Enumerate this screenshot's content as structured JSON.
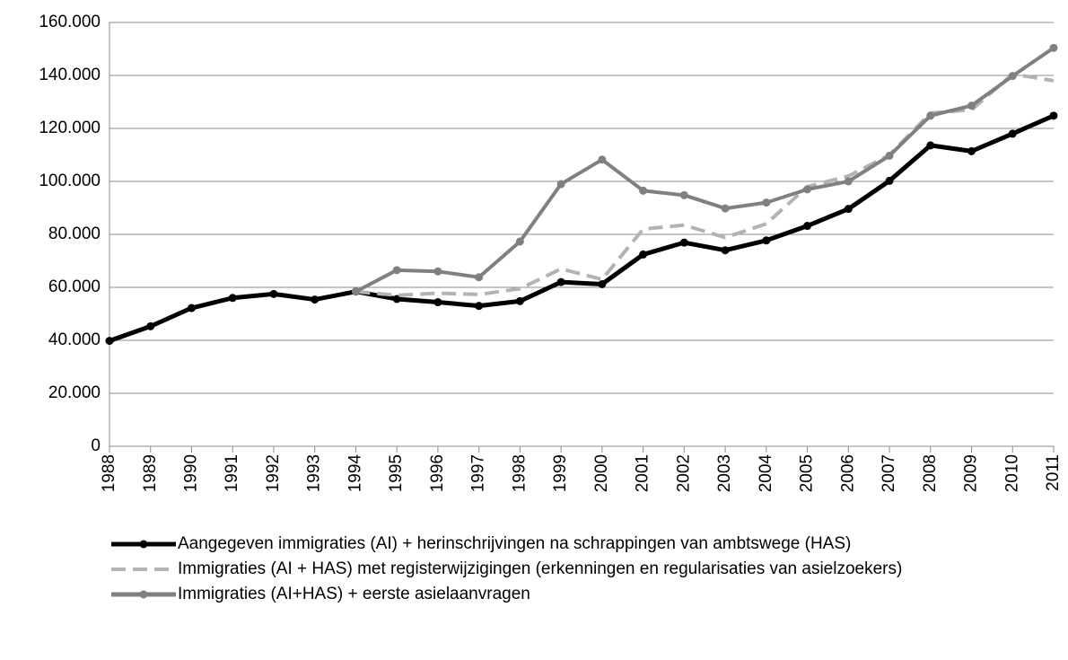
{
  "chart_data": {
    "type": "line",
    "categories": [
      "1988",
      "1989",
      "1990",
      "1991",
      "1992",
      "1993",
      "1994",
      "1995",
      "1996",
      "1997",
      "1998",
      "1999",
      "2000",
      "2001",
      "2002",
      "2003",
      "2004",
      "2005",
      "2006",
      "2007",
      "2008",
      "2009",
      "2010",
      "2011"
    ],
    "series": [
      {
        "name": "Aangegeven immigraties (AI) + herinschrijvingen na schrappingen van ambtswege (HAS)",
        "color": "#000000",
        "dashed": false,
        "marker": true,
        "values": [
          39800,
          45300,
          52200,
          56000,
          57500,
          55400,
          58400,
          55600,
          54400,
          53000,
          54800,
          62000,
          61200,
          72400,
          76900,
          74000,
          77700,
          83200,
          89600,
          100200,
          113600,
          111400,
          118000,
          124800
        ]
      },
      {
        "name": "Immigraties (AI + HAS) met registerwijzigingen (erkenningen en regularisaties van asielzoekers)",
        "color": "#b3b3b3",
        "dashed": true,
        "marker": false,
        "values": [
          null,
          null,
          null,
          null,
          null,
          null,
          58400,
          57000,
          57800,
          57300,
          59500,
          67000,
          63000,
          82000,
          83500,
          78800,
          84000,
          98000,
          102000,
          110000,
          125800,
          127000,
          140500,
          138000
        ]
      },
      {
        "name": "Immigraties (AI+HAS) + eerste asielaanvragen",
        "color": "#808080",
        "dashed": false,
        "marker": true,
        "values": [
          null,
          null,
          null,
          null,
          null,
          null,
          58400,
          66500,
          66000,
          63800,
          77300,
          99000,
          108200,
          96500,
          94800,
          89800,
          92000,
          97000,
          100000,
          109700,
          124800,
          128600,
          139800,
          150400
        ]
      }
    ],
    "ylim": [
      0,
      160000
    ],
    "yticks": [
      0,
      {
        "value": 20000,
        "label": "20.000"
      },
      {
        "value": 40000,
        "label": "40.000"
      },
      {
        "value": 60000,
        "label": "60.000"
      },
      {
        "value": 80000,
        "label": "80.000"
      },
      {
        "value": 100000,
        "label": "100.000"
      },
      {
        "value": 120000,
        "label": "120.000"
      },
      {
        "value": 140000,
        "label": "140.000"
      },
      {
        "value": 160000,
        "label": "160.000"
      }
    ],
    "grid": true
  }
}
